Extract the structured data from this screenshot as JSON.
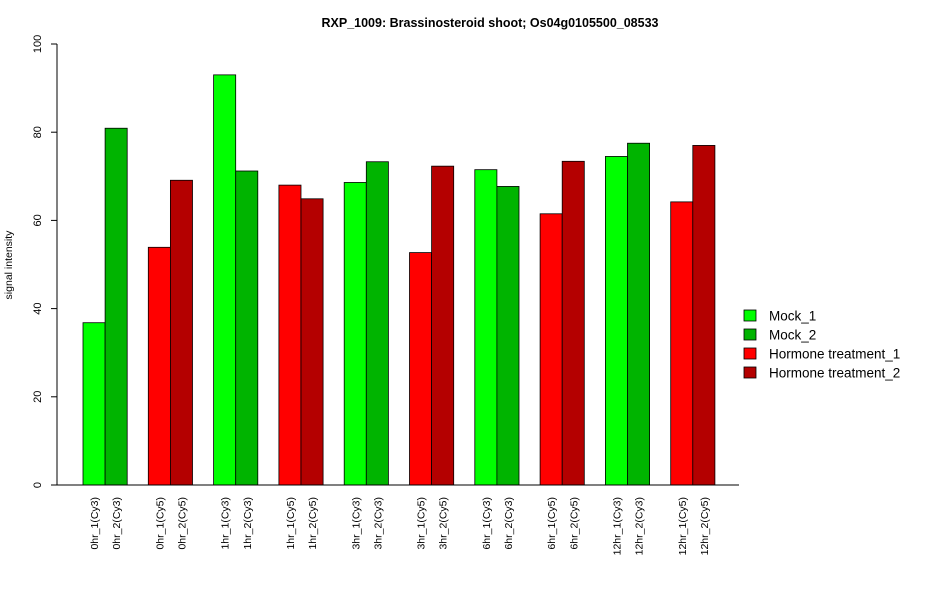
{
  "chart_data": {
    "type": "bar",
    "title": "RXP_1009: Brassinosteroid shoot; Os04g0105500_08533",
    "xlabel": "",
    "ylabel": "signal intensity",
    "ylim": [
      0,
      100
    ],
    "yticks": [
      0,
      20,
      40,
      60,
      80,
      100
    ],
    "grid": false,
    "legend_position": "right",
    "categories": [
      "0hr_1(Cy3)",
      "0hr_2(Cy3)",
      "0hr_1(Cy5)",
      "0hr_2(Cy5)",
      "1hr_1(Cy3)",
      "1hr_2(Cy3)",
      "1hr_1(Cy5)",
      "1hr_2(Cy5)",
      "3hr_1(Cy3)",
      "3hr_2(Cy3)",
      "3hr_1(Cy5)",
      "3hr_2(Cy5)",
      "6hr_1(Cy3)",
      "6hr_2(Cy3)",
      "6hr_1(Cy5)",
      "6hr_2(Cy5)",
      "12hr_1(Cy3)",
      "12hr_2(Cy3)",
      "12hr_1(Cy5)",
      "12hr_2(Cy5)"
    ],
    "values": [
      36.8,
      80.9,
      53.9,
      69.1,
      93.0,
      71.2,
      68.0,
      64.9,
      68.6,
      73.3,
      52.7,
      72.3,
      71.5,
      67.7,
      61.5,
      73.4,
      74.5,
      77.5,
      64.2,
      77.0
    ],
    "bar_series": [
      0,
      1,
      2,
      3,
      0,
      1,
      2,
      3,
      0,
      1,
      2,
      3,
      0,
      1,
      2,
      3,
      0,
      1,
      2,
      3
    ],
    "series": [
      {
        "name": "Mock_1",
        "color": "#00FF00"
      },
      {
        "name": "Mock_2",
        "color": "#00B400"
      },
      {
        "name": "Hormone treatment_1",
        "color": "#FF0000"
      },
      {
        "name": "Hormone treatment_2",
        "color": "#B40000"
      }
    ]
  }
}
